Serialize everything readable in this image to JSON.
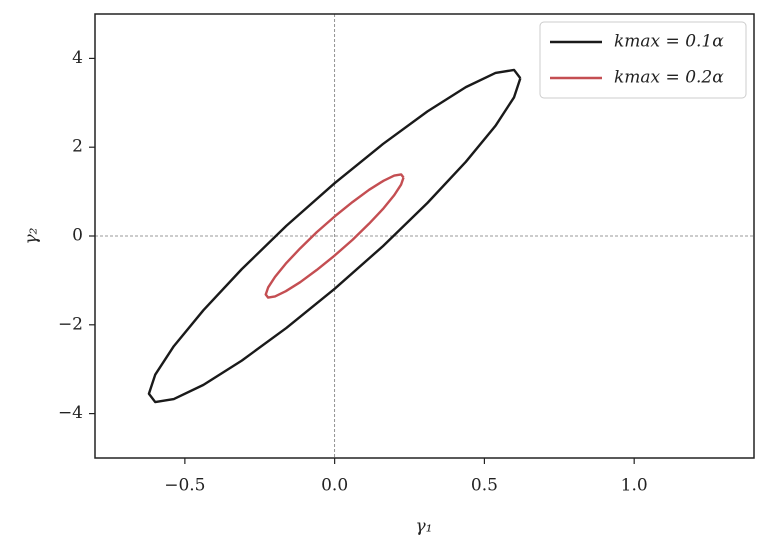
{
  "chart_data": {
    "type": "line",
    "xlabel": "γ₁",
    "ylabel": "γ₂",
    "xlim": [
      -0.8,
      1.4
    ],
    "ylim": [
      -5,
      5
    ],
    "xticks": [
      {
        "value": -0.5,
        "label": "−0.5"
      },
      {
        "value": 0,
        "label": "0.0"
      },
      {
        "value": 0.5,
        "label": "0.5"
      },
      {
        "value": 1,
        "label": "1.0"
      }
    ],
    "yticks": [
      {
        "value": -4,
        "label": "−4"
      },
      {
        "value": -2,
        "label": "−2"
      },
      0,
      2,
      4
    ],
    "zero_lines": true,
    "legend": "upper right",
    "series": [
      {
        "name": "kmax = 0.1α",
        "color": "#1a1a1a",
        "x": [
          0.62,
          0.599,
          0.537,
          0.438,
          0.31,
          0.161,
          0,
          -0.161,
          -0.31,
          -0.438,
          -0.537,
          -0.599,
          -0.62,
          -0.599,
          -0.537,
          -0.438,
          -0.31,
          -0.161,
          0,
          0.161,
          0.31,
          0.438,
          0.537,
          0.599,
          0.62
        ],
        "values": [
          3.553,
          3.74,
          3.672,
          3.353,
          2.807,
          2.07,
          1.19,
          0.23,
          -0.746,
          -1.671,
          -2.482,
          -3.124,
          -3.553,
          -3.74,
          -3.672,
          -3.353,
          -2.807,
          -2.07,
          -1.19,
          -0.23,
          0.746,
          1.671,
          2.482,
          3.124,
          3.553
        ]
      },
      {
        "name": "kmax = 0.2α",
        "color": "#c44e52",
        "x": [
          0.23,
          0.222,
          0.199,
          0.163,
          0.115,
          0.06,
          0,
          -0.06,
          -0.115,
          -0.163,
          -0.199,
          -0.222,
          -0.23,
          -0.222,
          -0.199,
          -0.163,
          -0.115,
          -0.06,
          0,
          0.06,
          0.115,
          0.163,
          0.199,
          0.222,
          0.23
        ],
        "values": [
          1.318,
          1.387,
          1.361,
          1.243,
          1.04,
          0.766,
          0.44,
          0.084,
          -0.278,
          -0.621,
          -0.921,
          -1.159,
          -1.318,
          -1.387,
          -1.361,
          -1.243,
          -1.04,
          -0.766,
          -0.44,
          -0.084,
          0.278,
          0.621,
          0.921,
          1.159,
          1.318
        ]
      }
    ]
  }
}
